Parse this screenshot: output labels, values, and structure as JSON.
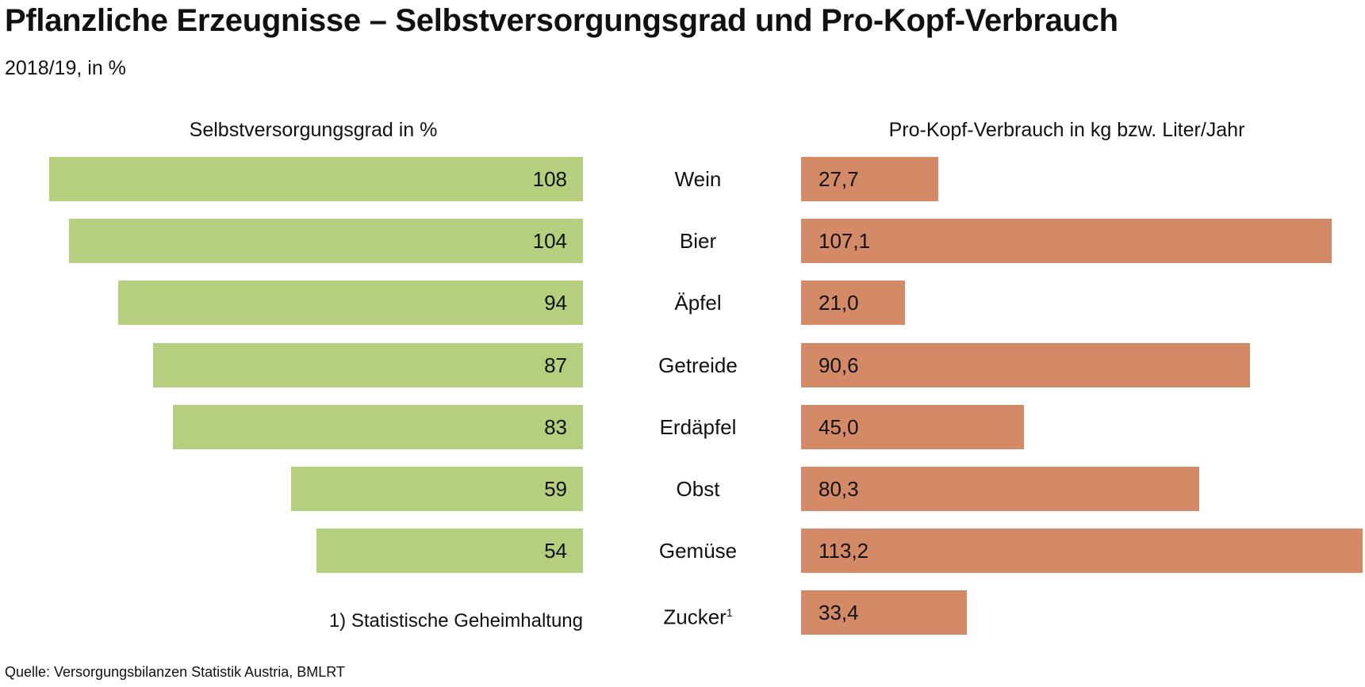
{
  "title": "Pflanzliche Erzeugnisse – Selbstversorgungsgrad und Pro-Kopf-Verbrauch",
  "subtitle": "2018/19, in %",
  "footnote": "1) Statistische Geheimhaltung",
  "source": "Quelle: Versorgungsbilanzen Statistik Austria, BMLRT",
  "colors": {
    "left": "#b5cf7f",
    "right": "#d58a67"
  },
  "chart_data": [
    {
      "type": "bar",
      "title": "Selbstversorgungsgrad in %",
      "orientation": "horizontal-reversed",
      "categories": [
        "Wein",
        "Bier",
        "Äpfel",
        "Getreide",
        "Erdäpfel",
        "Obst",
        "Gemüse",
        "Zucker"
      ],
      "values": [
        108,
        104,
        94,
        87,
        83,
        59,
        54,
        null
      ],
      "labels": [
        "108",
        "104",
        "94",
        "87",
        "83",
        "59",
        "54",
        ""
      ]
    },
    {
      "type": "bar",
      "title": "Pro-Kopf-Verbrauch in kg bzw. Liter/Jahr",
      "orientation": "horizontal",
      "categories": [
        "Wein",
        "Bier",
        "Äpfel",
        "Getreide",
        "Erdäpfel",
        "Obst",
        "Gemüse",
        "Zucker"
      ],
      "values": [
        27.7,
        107.1,
        21.0,
        90.6,
        45.0,
        80.3,
        113.2,
        33.4
      ],
      "labels": [
        "27,7",
        "107,1",
        "21,0",
        "90,6",
        "45,0",
        "80,3",
        "113,2",
        "33,4"
      ]
    }
  ],
  "category_labels": [
    "Wein",
    "Bier",
    "Äpfel",
    "Getreide",
    "Erdäpfel",
    "Obst",
    "Gemüse",
    "Zucker"
  ],
  "zucker_footnote_mark": "1"
}
